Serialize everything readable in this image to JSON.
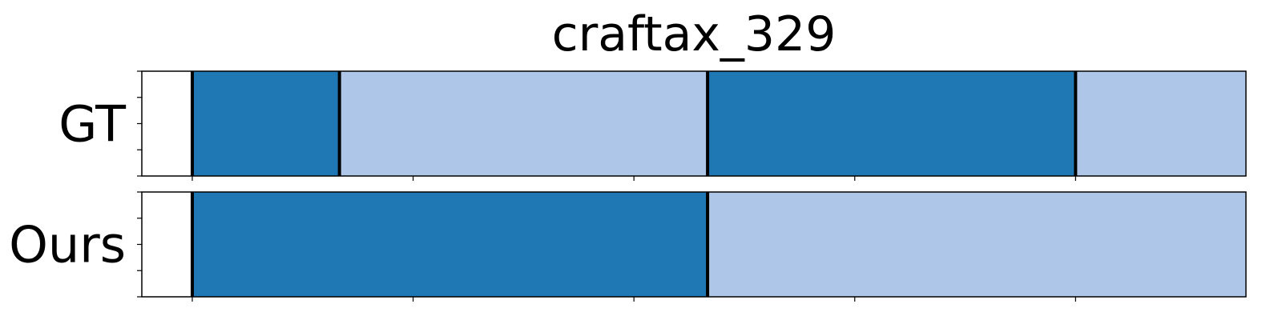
{
  "chart_data": {
    "type": "segmentation-timeline",
    "title": "craftax_329",
    "x_range": [
      0,
      1
    ],
    "x_ticks": [
      0.0457,
      0.2457,
      0.4457,
      0.6457,
      0.8457,
      1.0457
    ],
    "grid": false,
    "colors": {
      "dark": "#1f77b4",
      "light": "#aec7e8",
      "boundary": "#000000"
    },
    "rows": [
      {
        "label": "GT",
        "segments": [
          {
            "start": 0.0457,
            "end": 0.179,
            "class": "dark"
          },
          {
            "start": 0.179,
            "end": 0.5124,
            "class": "light"
          },
          {
            "start": 0.5124,
            "end": 0.8457,
            "class": "dark"
          },
          {
            "start": 0.8457,
            "end": 1.0457,
            "class": "light"
          }
        ],
        "boundaries": [
          0.0457,
          0.179,
          0.5124,
          0.8457,
          1.0457
        ]
      },
      {
        "label": "Ours",
        "segments": [
          {
            "start": 0.0457,
            "end": 0.5124,
            "class": "dark"
          },
          {
            "start": 0.5124,
            "end": 1.0457,
            "class": "light"
          }
        ],
        "boundaries": [
          0.0457,
          0.5124,
          1.0457
        ]
      }
    ]
  }
}
